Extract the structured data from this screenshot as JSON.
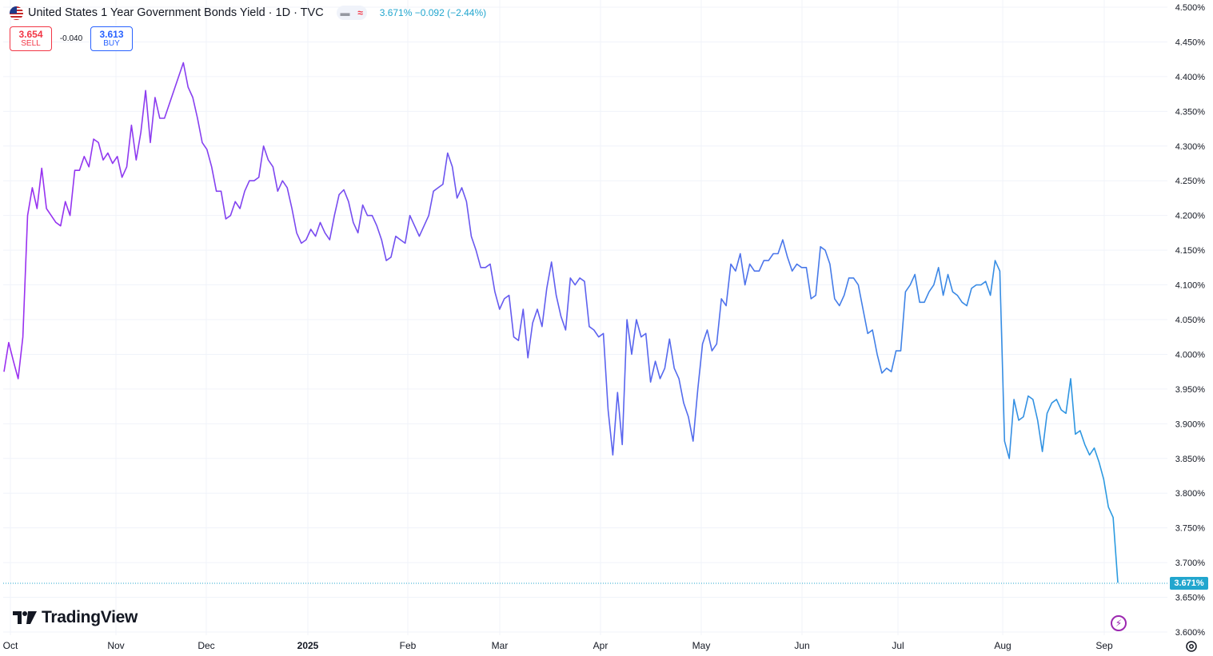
{
  "legend": {
    "title": "United States 1 Year Government Bonds Yield · 1D · TVC",
    "values_text": "3.671%  −0.092 (−2.44%)"
  },
  "trade": {
    "sell_price": "3.654",
    "sell_label": "SELL",
    "spread": "-0.040",
    "buy_price": "3.613",
    "buy_label": "BUY"
  },
  "branding": {
    "name": "TradingView"
  },
  "icons": {
    "flag": "us-flag-icon",
    "flash": "flash-icon",
    "settings": "gear-icon",
    "logo": "tradingview-logo-icon"
  },
  "colors": {
    "line_start": "#9b2ff0",
    "line_mid": "#5a64ef",
    "line_end": "#2b9be0",
    "last_price": "#22a6ce",
    "sell": "#f23645",
    "buy": "#2962ff"
  },
  "chart_data": {
    "type": "line",
    "title": "United States 1 Year Government Bonds Yield · 1D · TVC",
    "xlabel": "",
    "ylabel": "",
    "ylim": [
      3.6,
      4.5
    ],
    "y_ticks": [
      "4.500%",
      "4.450%",
      "4.400%",
      "4.350%",
      "4.300%",
      "4.250%",
      "4.200%",
      "4.150%",
      "4.100%",
      "4.050%",
      "4.000%",
      "3.950%",
      "3.900%",
      "3.850%",
      "3.800%",
      "3.750%",
      "3.700%",
      "3.650%",
      "3.600%"
    ],
    "x_ticks": [
      "Oct",
      "Nov",
      "Dec",
      "2025",
      "Feb",
      "Mar",
      "Apr",
      "May",
      "Jun",
      "Jul",
      "Aug",
      "Sep"
    ],
    "grid": true,
    "last_value_label": "3.671%",
    "series": [
      {
        "x_index_range": [
          0,
          282
        ],
        "values": [
          3.975,
          4.017,
          3.99,
          3.965,
          4.025,
          4.2,
          4.24,
          4.21,
          4.268,
          4.21,
          4.2,
          4.19,
          4.185,
          4.22,
          4.2,
          4.265,
          4.265,
          4.285,
          4.27,
          4.31,
          4.305,
          4.28,
          4.29,
          4.275,
          4.285,
          4.255,
          4.27,
          4.33,
          4.28,
          4.32,
          4.38,
          4.305,
          4.37,
          4.34,
          4.34,
          4.36,
          4.38,
          4.4,
          4.42,
          4.385,
          4.37,
          4.34,
          4.305,
          4.295,
          4.27,
          4.235,
          4.235,
          4.195,
          4.2,
          4.22,
          4.21,
          4.235,
          4.25,
          4.25,
          4.255,
          4.3,
          4.28,
          4.27,
          4.235,
          4.25,
          4.24,
          4.21,
          4.175,
          4.16,
          4.165,
          4.18,
          4.17,
          4.19,
          4.175,
          4.165,
          4.2,
          4.23,
          4.237,
          4.22,
          4.19,
          4.175,
          4.215,
          4.2,
          4.2,
          4.185,
          4.165,
          4.135,
          4.14,
          4.17,
          4.165,
          4.16,
          4.2,
          4.185,
          4.17,
          4.185,
          4.2,
          4.235,
          4.24,
          4.245,
          4.29,
          4.27,
          4.225,
          4.24,
          4.22,
          4.17,
          4.15,
          4.125,
          4.125,
          4.13,
          4.09,
          4.065,
          4.08,
          4.085,
          4.025,
          4.02,
          4.065,
          3.995,
          4.045,
          4.065,
          4.04,
          4.095,
          4.133,
          4.085,
          4.055,
          4.035,
          4.11,
          4.1,
          4.11,
          4.105,
          4.04,
          4.035,
          4.025,
          4.03,
          3.92,
          3.855,
          3.945,
          3.87,
          4.05,
          4.0,
          4.05,
          4.025,
          4.03,
          3.96,
          3.99,
          3.965,
          3.98,
          4.022,
          3.98,
          3.965,
          3.93,
          3.91,
          3.875,
          3.95,
          4.015,
          4.035,
          4.005,
          4.015,
          4.08,
          4.07,
          4.13,
          4.12,
          4.145,
          4.1,
          4.13,
          4.12,
          4.12,
          4.135,
          4.135,
          4.145,
          4.145,
          4.165,
          4.14,
          4.12,
          4.13,
          4.125,
          4.125,
          4.08,
          4.085,
          4.155,
          4.15,
          4.13,
          4.08,
          4.07,
          4.085,
          4.11,
          4.11,
          4.1,
          4.065,
          4.03,
          4.035,
          4.0,
          3.973,
          3.98,
          3.975,
          4.005,
          4.005,
          4.09,
          4.1,
          4.115,
          4.075,
          4.075,
          4.09,
          4.1,
          4.125,
          4.085,
          4.115,
          4.09,
          4.085,
          4.075,
          4.07,
          4.095,
          4.1,
          4.1,
          4.105,
          4.085,
          4.135,
          4.12,
          3.875,
          3.85,
          3.935,
          3.905,
          3.91,
          3.94,
          3.935,
          3.905,
          3.86,
          3.915,
          3.93,
          3.935,
          3.92,
          3.915,
          3.965,
          3.885,
          3.89,
          3.87,
          3.855,
          3.865,
          3.845,
          3.82,
          3.78,
          3.765,
          3.671
        ]
      }
    ]
  }
}
